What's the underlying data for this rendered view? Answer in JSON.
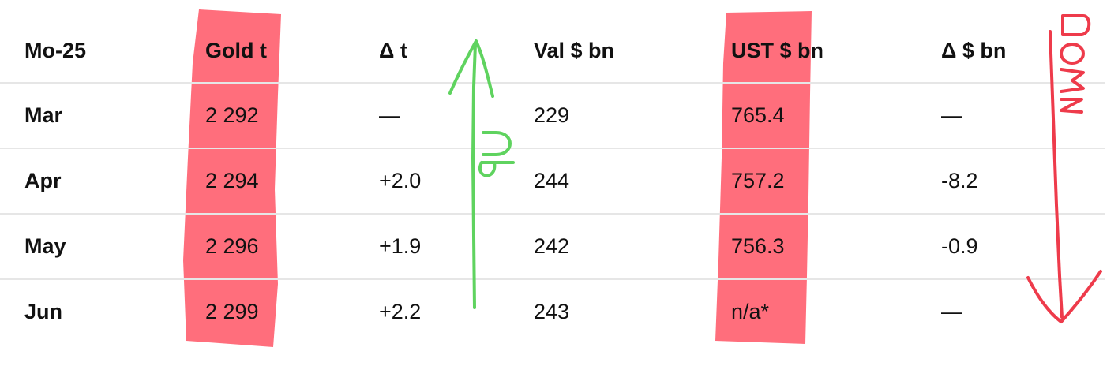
{
  "table": {
    "headers": [
      "Mo-25",
      "Gold t",
      "Δ t",
      "Val $ bn",
      "UST $ bn",
      "Δ $ bn"
    ],
    "rows": [
      {
        "month": "Mar",
        "gold_t": "2 292",
        "delta_t": "—",
        "val_bn": "229",
        "ust_bn": "765.4",
        "delta_bn": "—"
      },
      {
        "month": "Apr",
        "gold_t": "2 294",
        "delta_t": "+2.0",
        "val_bn": "244",
        "ust_bn": "757.2",
        "delta_bn": "-8.2"
      },
      {
        "month": "May",
        "gold_t": "2 296",
        "delta_t": "+1.9",
        "val_bn": "242",
        "ust_bn": "756.3",
        "delta_bn": "-0.9"
      },
      {
        "month": "Jun",
        "gold_t": "2 299",
        "delta_t": "+2.2",
        "val_bn": "243",
        "ust_bn": "n/a*",
        "delta_bn": "—"
      }
    ]
  },
  "annotations": {
    "highlight_color": "#ff5a6a",
    "up_color": "#5fd35f",
    "down_color": "#ee3b4b",
    "up_label": "UP",
    "down_label": "DOWN"
  }
}
